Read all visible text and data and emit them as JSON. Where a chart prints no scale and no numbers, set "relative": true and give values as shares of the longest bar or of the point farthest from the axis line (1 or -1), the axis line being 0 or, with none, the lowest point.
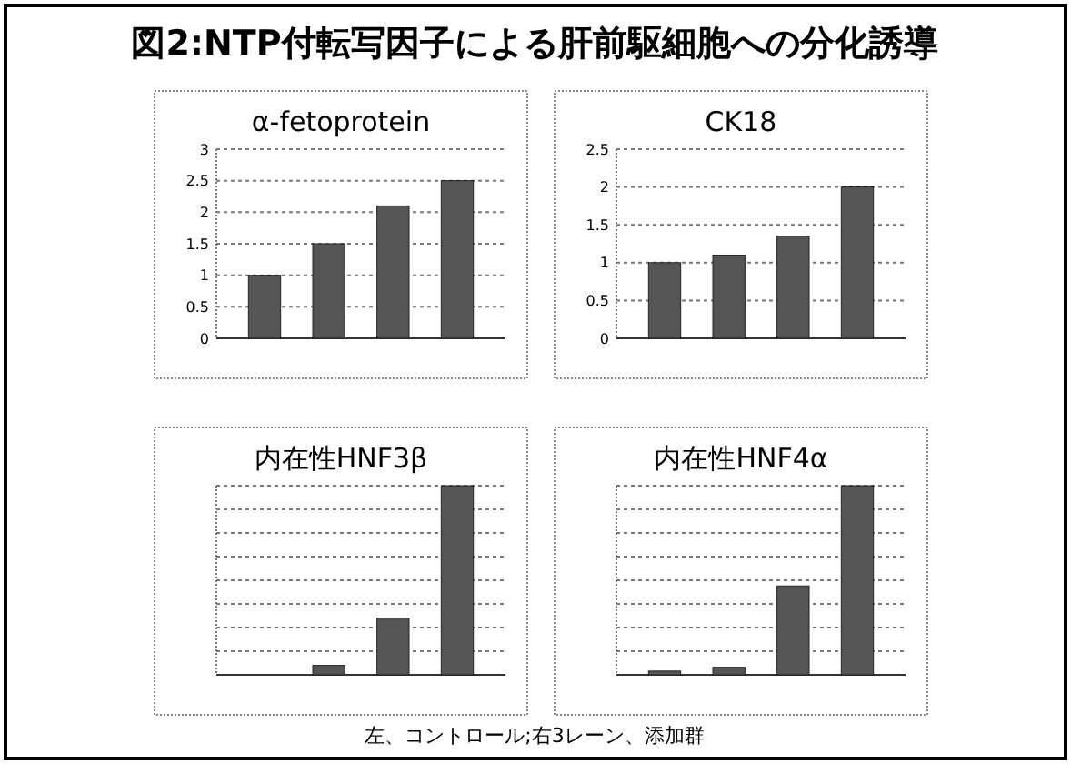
{
  "chart_data": [
    {
      "type": "other",
      "title": "図2:NTP付転写因子による肝前駆細胞への分化誘導",
      "annotations": [
        "左、コントロール;右3レーン、添加群"
      ]
    },
    {
      "type": "bar",
      "title": "α-fetoprotein",
      "categories": [
        null,
        null,
        null,
        null
      ],
      "values": [
        1.0,
        1.5,
        2.1,
        2.5
      ],
      "color": "#555555",
      "ylim": [
        0,
        3
      ],
      "yticks": [
        0,
        0.5,
        1,
        1.5,
        2,
        2.5,
        3
      ],
      "grid": "y"
    },
    {
      "type": "bar",
      "title": "CK18",
      "categories": [
        null,
        null,
        null,
        null
      ],
      "values": [
        1.0,
        1.1,
        1.35,
        2.0
      ],
      "color": "#555555",
      "ylim": [
        0,
        2.5
      ],
      "yticks": [
        0,
        0.5,
        1,
        1.5,
        2,
        2.5
      ],
      "grid": "y"
    },
    {
      "type": "bar",
      "title": "内在性HNF3β",
      "categories": [
        null,
        null,
        null,
        null
      ],
      "values": [
        null,
        0.05,
        0.3,
        1
      ],
      "color": "#555555",
      "relative": true,
      "grid": "y"
    },
    {
      "type": "bar",
      "title": "内在性HNF4α",
      "categories": [
        null,
        null,
        null,
        null
      ],
      "values": [
        0.02,
        0.04,
        0.47,
        1
      ],
      "color": "#555555",
      "relative": true,
      "grid": "y"
    }
  ]
}
